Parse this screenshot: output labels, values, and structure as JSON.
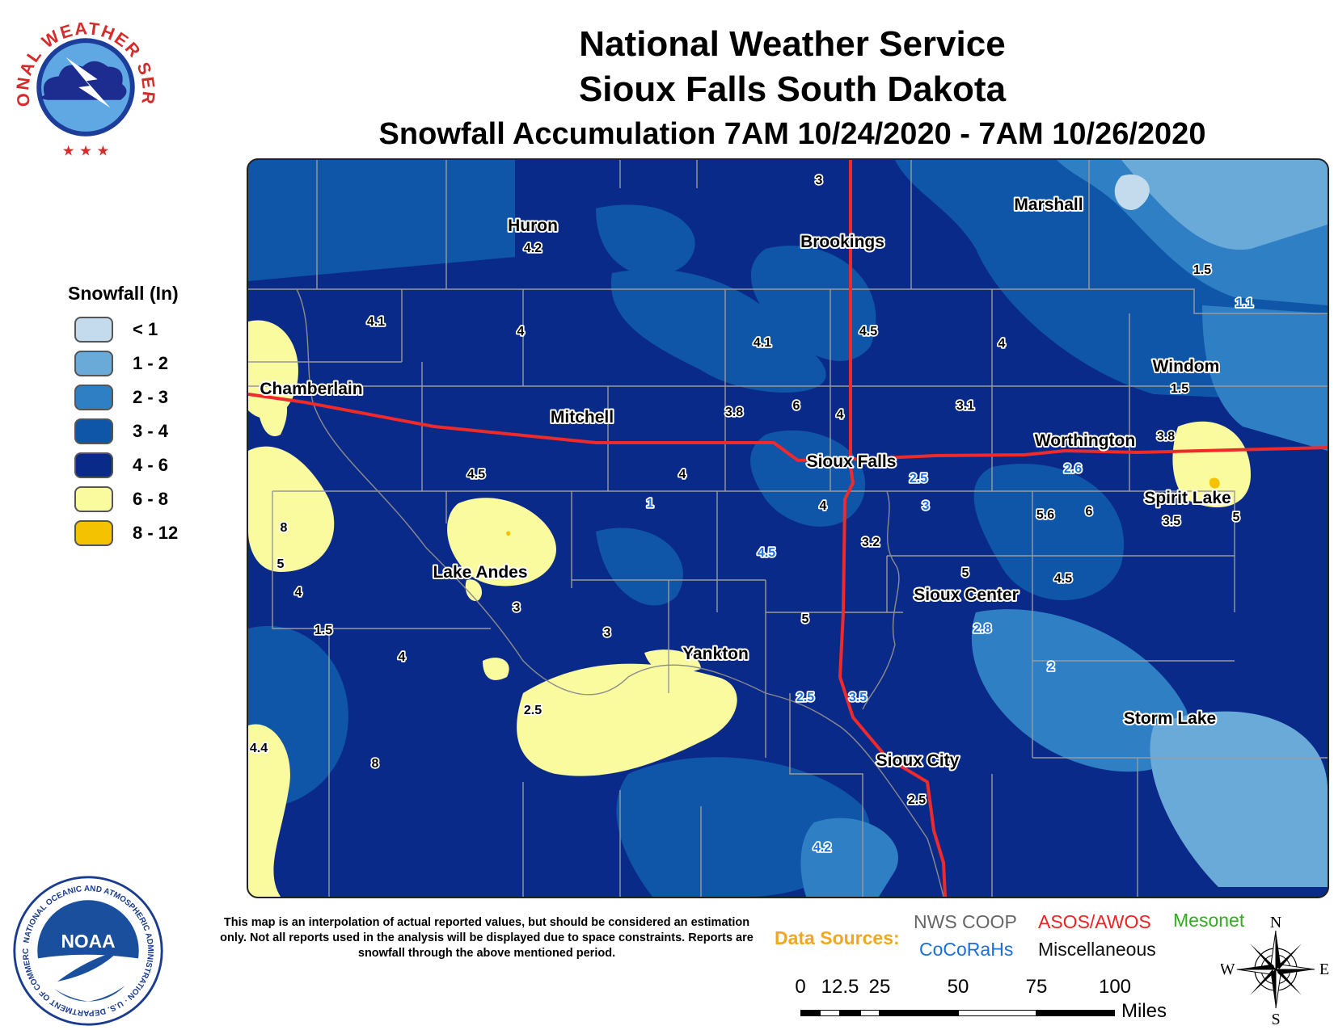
{
  "title": {
    "line1": "National Weather Service",
    "line2": "Sioux Falls South Dakota",
    "line3": "Snowfall Accumulation 7AM 10/24/2020 - 7AM 10/26/2020"
  },
  "legend": {
    "title": "Snowfall (In)",
    "items": [
      {
        "label": "< 1",
        "color": "#c3dbec"
      },
      {
        "label": "1 - 2",
        "color": "#6aaad8"
      },
      {
        "label": "2 - 3",
        "color": "#2e7fc4"
      },
      {
        "label": "3 - 4",
        "color": "#0f56a8"
      },
      {
        "label": "4 - 6",
        "color": "#0a2a8a"
      },
      {
        "label": "6 - 8",
        "color": "#fafa9e"
      },
      {
        "label": "8 - 12",
        "color": "#f5c200"
      }
    ]
  },
  "cities": [
    "Huron",
    "Brookings",
    "Marshall",
    "Chamberlain",
    "Mitchell",
    "Sioux Falls",
    "Worthington",
    "Windom",
    "Spirit Lake",
    "Lake Andes",
    "Sioux Center",
    "Yankton",
    "Storm Lake",
    "Sioux City"
  ],
  "values": [
    "3",
    "4.2",
    "1.5",
    "1.1",
    "4.1",
    "4",
    "4.1",
    "4.5",
    "4",
    "1.5",
    "3.8",
    "6",
    "4",
    "3.1",
    "3.8",
    "4.5",
    "4",
    "2.5",
    "2.6",
    "1",
    "4",
    "3",
    "5.6",
    "6",
    "3.5",
    "5",
    "8",
    "5",
    "4.5",
    "3.2",
    "5",
    "4.5",
    "4",
    "3",
    "5",
    "3",
    "2.8",
    "1.5",
    "4",
    "2",
    "2.5",
    "3.5",
    "2.5",
    "4.4",
    "8",
    "2.5",
    "4.2",
    "1"
  ],
  "disclaimer": "This map is an interpolation of actual reported values, but should be considered an estimation only. Not all reports used in the analysis will be displayed due to space constraints. Reports are snowfall through the above mentioned period.",
  "data_sources": {
    "label": "Data Sources:",
    "items": [
      {
        "name": "NWS COOP",
        "color": "#666666"
      },
      {
        "name": "ASOS/AWOS",
        "color": "#ee2222"
      },
      {
        "name": "Mesonet",
        "color": "#33aa22"
      },
      {
        "name": "CoCoRaHs",
        "color": "#1a6fe0"
      },
      {
        "name": "Miscellaneous",
        "color": "#111111"
      }
    ]
  },
  "scale_bar": {
    "ticks": [
      "0",
      "12.5",
      "25",
      "50",
      "75",
      "100"
    ],
    "unit": "Miles"
  },
  "compass": {
    "n": "N",
    "s": "S",
    "e": "E",
    "w": "W"
  },
  "logos": {
    "nws_text": "NATIONAL WEATHER SERVICE",
    "noaa_text": "NOAA",
    "noaa_ring": "NATIONAL OCEANIC AND ATMOSPHERIC ADMINISTRATION · U.S. DEPARTMENT OF COMMERCE"
  }
}
